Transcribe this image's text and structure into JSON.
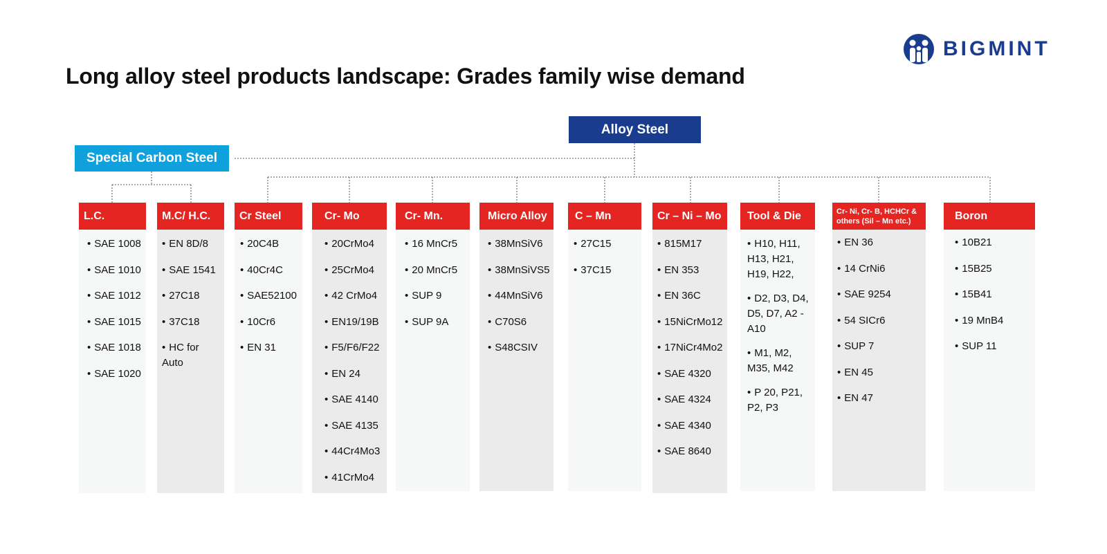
{
  "title": "Long alloy steel products landscape: Grades family wise demand",
  "brand": {
    "name": "BIGMINT",
    "color": "#1a3c8f"
  },
  "root": {
    "alloy_steel": "Alloy Steel",
    "special_carbon_steel": "Special Carbon Steel"
  },
  "colors": {
    "alloy_box": "#1a3c8f",
    "special_box": "#0ea1db",
    "column_header": "#e52521"
  },
  "columns": [
    {
      "name": "L.C.",
      "items": [
        "SAE 1008",
        "SAE 1010",
        "SAE 1012",
        "SAE 1015",
        "SAE 1018",
        "SAE 1020"
      ]
    },
    {
      "name": "M.C/ H.C.",
      "items": [
        "EN 8D/8",
        "SAE 1541",
        "27C18",
        "37C18",
        "HC for Auto"
      ]
    },
    {
      "name": "Cr Steel",
      "items": [
        "20C4B",
        "40Cr4C",
        "SAE52100",
        "10Cr6",
        "EN 31"
      ]
    },
    {
      "name": "Cr- Mo",
      "items": [
        "20CrMo4",
        "25CrMo4",
        "42 CrMo4",
        "EN19/19B",
        "F5/F6/F22",
        "EN 24",
        "SAE 4140",
        "SAE 4135",
        "44Cr4Mo3",
        "41CrMo4"
      ]
    },
    {
      "name": "Cr- Mn.",
      "items": [
        "16 MnCr5",
        "20 MnCr5",
        "SUP 9",
        "SUP 9A"
      ]
    },
    {
      "name": "Micro Alloy",
      "items": [
        "38MnSiV6",
        "38MnSiVS5",
        "44MnSiV6",
        "C70S6",
        "S48CSIV"
      ]
    },
    {
      "name": "C – Mn",
      "items": [
        "27C15",
        "37C15"
      ]
    },
    {
      "name": "Cr – Ni – Mo",
      "items": [
        "815M17",
        "EN 353",
        "EN 36C",
        "15NiCrMo12",
        "17NiCr4Mo2",
        "SAE 4320",
        "SAE 4324",
        "SAE 4340",
        "SAE 8640"
      ]
    },
    {
      "name": "Tool & Die",
      "items": [
        "H10, H11, H13, H21, H19, H22,",
        "D2, D3, D4, D5, D7, A2 - A10",
        "M1, M2, M35, M42",
        "P 20, P21, P2, P3"
      ]
    },
    {
      "name": "Cr- Ni, Cr- B, HCHCr & others (Sil – Mn etc.)",
      "items": [
        "EN 36",
        "14 CrNi6",
        "SAE 9254",
        "54 SICr6",
        "SUP 7",
        "EN 45",
        "EN 47"
      ]
    },
    {
      "name": "Boron",
      "items": [
        "10B21",
        "15B25",
        "15B41",
        "19 MnB4",
        "SUP 11"
      ]
    }
  ]
}
